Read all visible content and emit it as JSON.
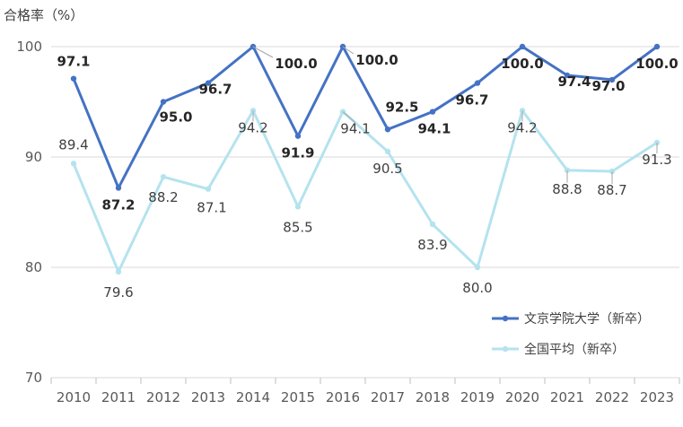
{
  "chart_data": {
    "type": "line",
    "ylabel": "合格率（%）",
    "ylim": [
      70,
      100
    ],
    "yticks": [
      70,
      80,
      90,
      100
    ],
    "grid": "horizontal",
    "legend_position": "bottom-right",
    "categories": [
      "2010",
      "2011",
      "2012",
      "2013",
      "2014",
      "2015",
      "2016",
      "2017",
      "2018",
      "2019",
      "2020",
      "2021",
      "2022",
      "2023"
    ],
    "series": [
      {
        "name": "文京学院大学（新卒）",
        "color": "#4472C4",
        "values": [
          97.1,
          87.2,
          95.0,
          96.7,
          100.0,
          91.9,
          100.0,
          92.5,
          94.1,
          96.7,
          100.0,
          97.4,
          97.0,
          100.0
        ],
        "labels": [
          "97.1",
          "87.2",
          "95.0",
          "96.7",
          "100.0",
          "91.9",
          "100.0",
          "92.5",
          "94.1",
          "96.7",
          "100.0",
          "97.4",
          "97.0",
          "100.0"
        ]
      },
      {
        "name": "全国平均（新卒）",
        "color": "#B4E3EE",
        "values": [
          89.4,
          79.6,
          88.2,
          87.1,
          94.2,
          85.5,
          94.1,
          90.5,
          83.9,
          80.0,
          94.2,
          88.8,
          88.7,
          91.3
        ],
        "labels": [
          "89.4",
          "79.6",
          "88.2",
          "87.1",
          "94.2",
          "85.5",
          "94.1",
          "90.5",
          "83.9",
          "80.0",
          "94.2",
          "88.8",
          "88.7",
          "91.3"
        ]
      }
    ]
  }
}
